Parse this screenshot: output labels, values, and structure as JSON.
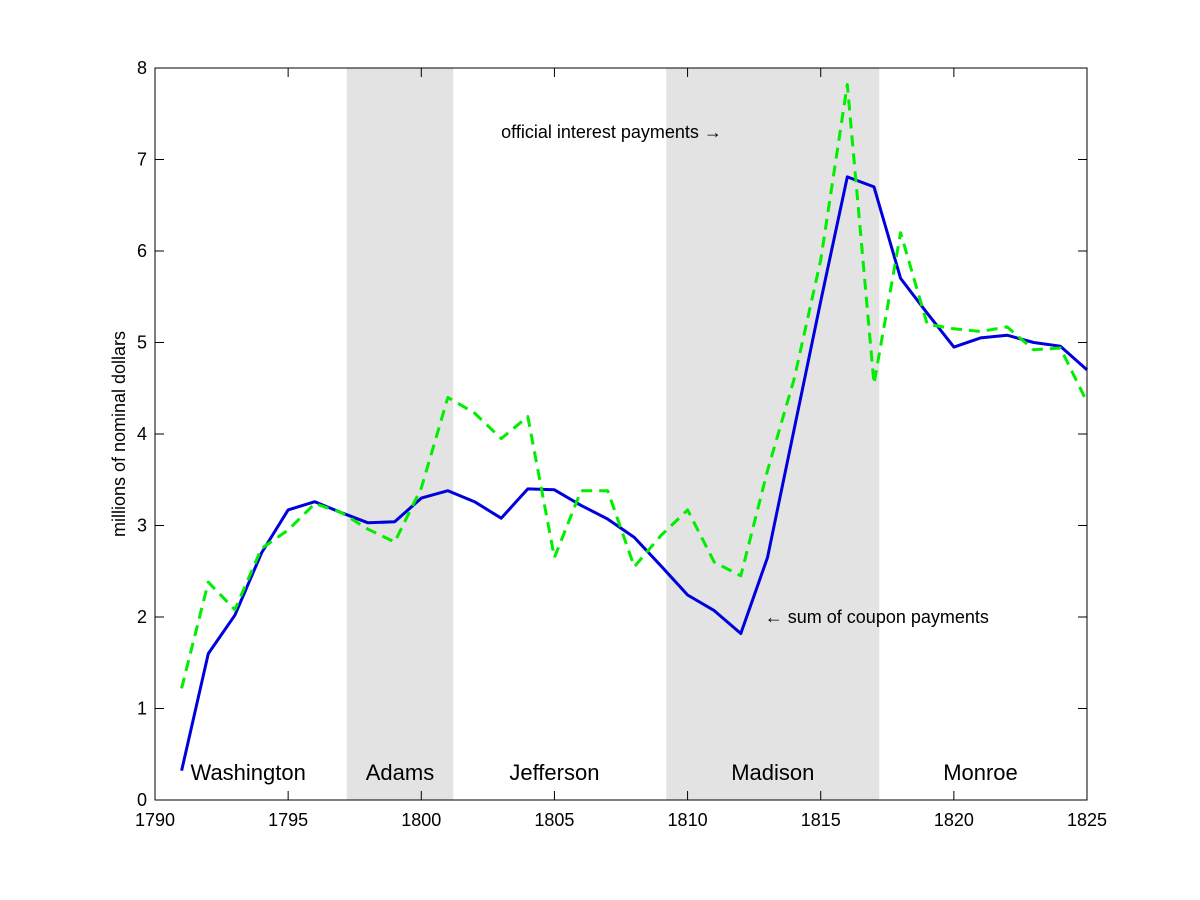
{
  "chart_data": {
    "type": "line",
    "title": "",
    "xlabel": "",
    "ylabel": "millions of nominal dollars",
    "xlim": [
      1790,
      1825
    ],
    "ylim": [
      0,
      8
    ],
    "xticks": [
      "1790",
      "1795",
      "1800",
      "1805",
      "1810",
      "1815",
      "1820",
      "1825"
    ],
    "yticks": [
      "0",
      "1",
      "2",
      "3",
      "4",
      "5",
      "6",
      "7",
      "8"
    ],
    "grid": false,
    "legend": "none",
    "shaded_periods": [
      {
        "start": 1797.2,
        "end": 1801.2,
        "color": "#e3e3e3"
      },
      {
        "start": 1809.2,
        "end": 1817.2,
        "color": "#e3e3e3"
      }
    ],
    "period_labels": [
      {
        "text": "Washington",
        "x": 1793.5,
        "y": 0.25
      },
      {
        "text": "Adams",
        "x": 1799.2,
        "y": 0.25
      },
      {
        "text": "Jefferson",
        "x": 1805.0,
        "y": 0.25
      },
      {
        "text": "Madison",
        "x": 1813.2,
        "y": 0.25
      },
      {
        "text": "Monroe",
        "x": 1821.0,
        "y": 0.25
      }
    ],
    "annotations": [
      {
        "text": "official interest payments →",
        "x": 1803.0,
        "y": 7.3
      },
      {
        "text": "← sum of coupon payments",
        "x": 1812.9,
        "y": 2.0
      }
    ],
    "series": [
      {
        "color": "#0000dd",
        "dash": "solid",
        "x": [
          1791,
          1792,
          1793,
          1794,
          1795,
          1796,
          1797,
          1798,
          1799,
          1800,
          1801,
          1802,
          1803,
          1804,
          1805,
          1806,
          1807,
          1808,
          1809,
          1810,
          1811,
          1812,
          1813,
          1814,
          1815,
          1816,
          1817,
          1818,
          1819,
          1820,
          1821,
          1822,
          1823,
          1824,
          1825
        ],
        "values": [
          0.32,
          1.6,
          2.02,
          2.7,
          3.17,
          3.26,
          3.14,
          3.03,
          3.04,
          3.3,
          3.38,
          3.26,
          3.08,
          3.4,
          3.39,
          3.22,
          3.07,
          2.87,
          2.56,
          2.24,
          2.07,
          1.82,
          2.65,
          4.05,
          5.45,
          6.81,
          6.7,
          5.7,
          5.32,
          4.95,
          5.05,
          5.08,
          5.0,
          4.96,
          4.7
        ]
      },
      {
        "color": "#00ee00",
        "dash": "dashed",
        "x": [
          1791,
          1792,
          1793,
          1794,
          1795,
          1796,
          1797,
          1798,
          1799,
          1800,
          1801,
          1802,
          1803,
          1804,
          1805,
          1806,
          1807,
          1808,
          1809,
          1810,
          1811,
          1812,
          1813,
          1814,
          1815,
          1816,
          1817,
          1818,
          1819,
          1820,
          1821,
          1822,
          1823,
          1824,
          1825
        ],
        "values": [
          1.22,
          2.38,
          2.08,
          2.75,
          2.95,
          3.24,
          3.14,
          2.96,
          2.82,
          3.41,
          4.4,
          4.23,
          3.95,
          4.19,
          2.65,
          3.38,
          3.38,
          2.55,
          2.89,
          3.17,
          2.6,
          2.45,
          3.6,
          4.6,
          5.9,
          7.82,
          4.55,
          6.2,
          5.2,
          5.15,
          5.12,
          5.17,
          4.92,
          4.94,
          4.35
        ]
      }
    ]
  }
}
